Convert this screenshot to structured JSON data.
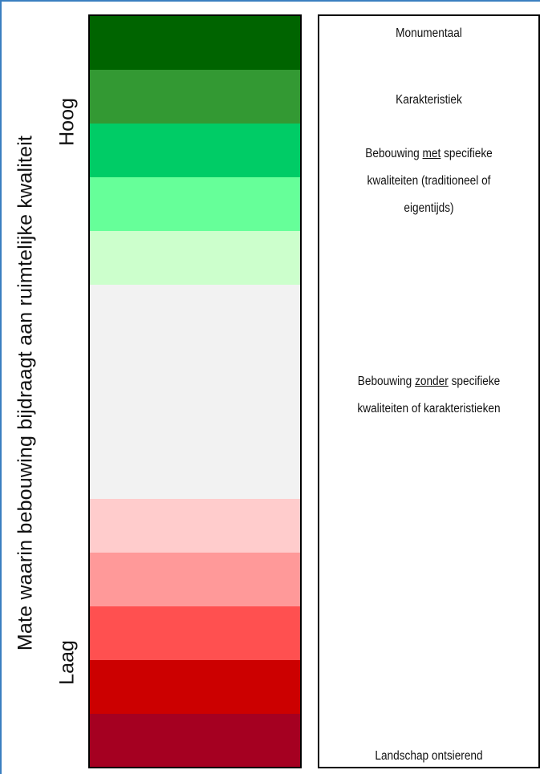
{
  "axis": {
    "title": "Mate waarin bebouwing bijdraagt aan ruimtelijke kwaliteit",
    "high_label": "Hoog",
    "low_label": "Laag"
  },
  "scale": {
    "bands": [
      {
        "color": "#006400",
        "span": 1
      },
      {
        "color": "#339933",
        "span": 1
      },
      {
        "color": "#00cc66",
        "span": 1
      },
      {
        "color": "#66ff99",
        "span": 1
      },
      {
        "color": "#ccffcc",
        "span": 1
      },
      {
        "color": "#f2f2f2",
        "span": 4
      },
      {
        "color": "#ffcccc",
        "span": 1
      },
      {
        "color": "#ff9999",
        "span": 1
      },
      {
        "color": "#ff5050",
        "span": 1
      },
      {
        "color": "#cc0000",
        "span": 1
      },
      {
        "color": "#a50021",
        "span": 1
      }
    ]
  },
  "legend": {
    "monumental": "Monumentaal",
    "characteristic": "Karakteristiek",
    "with_qualities": {
      "prefix": "Bebouwing ",
      "emphasis": "met",
      "line1_rest": " specifieke",
      "line2": "kwaliteiten (traditioneel of",
      "line3": "eigentijds)"
    },
    "without_qualities": {
      "prefix": "Bebouwing ",
      "emphasis": "zonder",
      "line1_rest": " specifieke",
      "line2": "kwaliteiten of karakteristieken"
    },
    "disfiguring": "Landschap ontsierend"
  }
}
